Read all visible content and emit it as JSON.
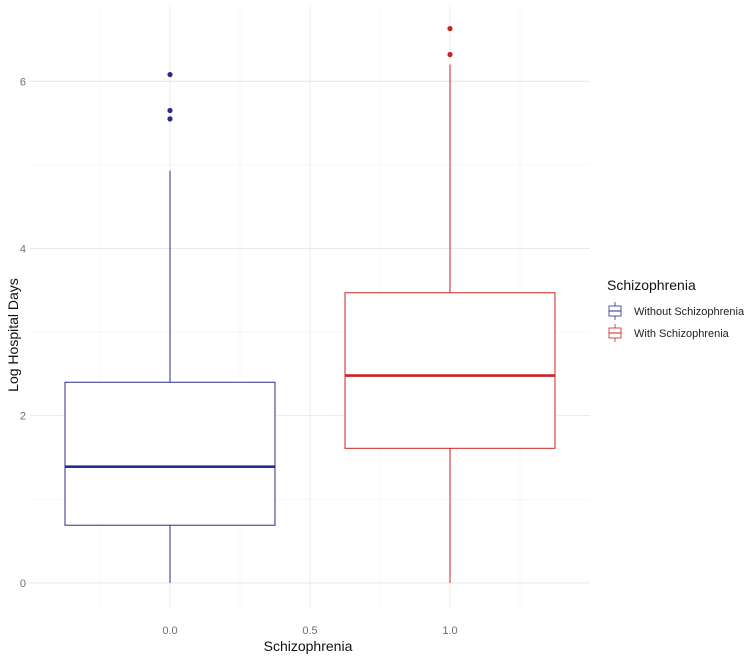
{
  "chart_data": {
    "type": "boxplot",
    "title": "",
    "xlabel": "Schizophrenia",
    "ylabel": "Log Hospital Days",
    "xlim": [
      -0.5,
      1.5
    ],
    "ylim": [
      -0.3,
      6.9
    ],
    "x_ticks": [
      "0.0",
      "0.5",
      "1.0"
    ],
    "y_ticks": [
      "0",
      "2",
      "4",
      "6"
    ],
    "grid": true,
    "legend": {
      "title": "Schizophrenia",
      "position": "right",
      "entries": [
        "Without Schizophrenia",
        "With Schizophrenia"
      ]
    },
    "series": [
      {
        "name": "Without Schizophrenia",
        "x": 0.0,
        "box_halfwidth": 0.375,
        "color": "#2b2b8f",
        "min": 0,
        "q1": 0.69,
        "median": 1.39,
        "q3": 2.4,
        "max": 4.93,
        "outliers": [
          5.55,
          5.65,
          6.08
        ]
      },
      {
        "name": "With Schizophrenia",
        "x": 1.0,
        "box_halfwidth": 0.375,
        "color": "#cc2222",
        "min": 0,
        "q1": 1.61,
        "median": 2.48,
        "q3": 3.47,
        "max": 6.2,
        "outliers": [
          6.32,
          6.63
        ]
      }
    ]
  }
}
